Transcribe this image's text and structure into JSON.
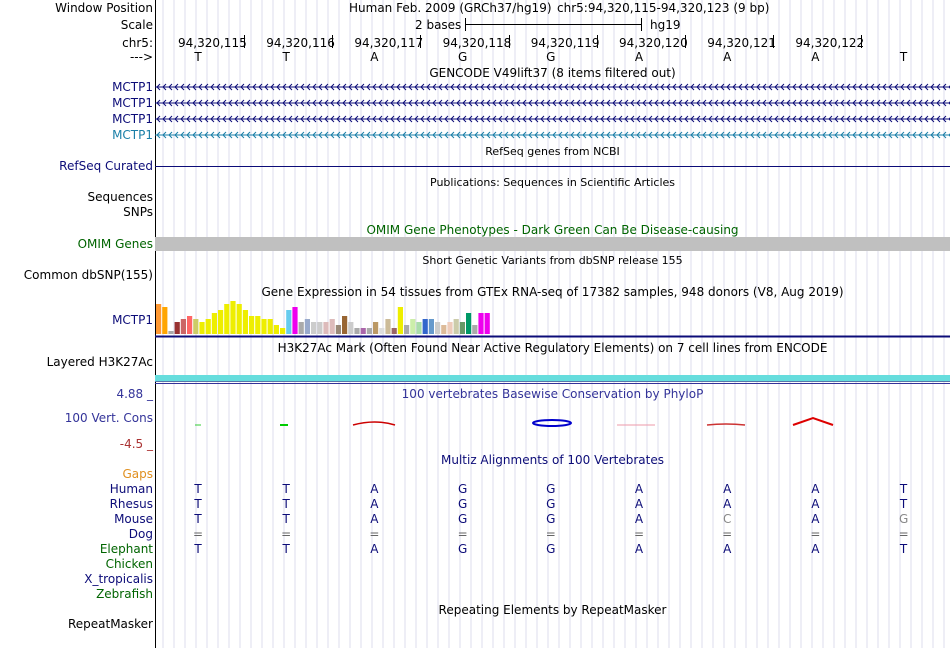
{
  "header": {
    "window_position_label": "Window Position",
    "scale_label": "Scale",
    "chrom_label": "chr5:",
    "arrow_label": "--->",
    "assembly": "Human Feb. 2009 (GRCh37/hg19)",
    "position": "chr5:94,320,115-94,320,123 (9 bp)",
    "scale_text": "2 bases",
    "db": "hg19",
    "coords": [
      "94,320,115",
      "94,320,116",
      "94,320,117",
      "94,320,118",
      "94,320,119",
      "94,320,120",
      "94,320,121",
      "94,320,122"
    ],
    "bases": [
      "T",
      "T",
      "A",
      "G",
      "G",
      "A",
      "A",
      "A",
      "T"
    ]
  },
  "gencode": {
    "title": "GENCODE V49lift37 (8 items filtered out)",
    "genes": [
      "MCTP1",
      "MCTP1",
      "MCTP1",
      "MCTP1"
    ],
    "colors": [
      "#0c0c78",
      "#0c0c78",
      "#0c0c78",
      "#1a7fa8"
    ]
  },
  "refseq": {
    "title": "RefSeq genes from NCBI",
    "label": "RefSeq Curated"
  },
  "publications": {
    "title": "Publications: Sequences in Scientific Articles",
    "label1": "Sequences",
    "label2": "SNPs"
  },
  "omim": {
    "title": "OMIM Gene Phenotypes - Dark Green Can Be Disease-causing",
    "label": "OMIM Genes",
    "color": "#c0c0c0"
  },
  "dbsnp": {
    "title": "Short Genetic Variants from dbSNP release 155",
    "label": "Common dbSNP(155)"
  },
  "gtex": {
    "title": "Gene Expression in 54 tissues from GTEx RNA-seq of 17382 samples, 948 donors (V8, Aug 2019)",
    "label": "MCTP1",
    "values": [
      10,
      9,
      1,
      4,
      5,
      6,
      5,
      4,
      5,
      7,
      8,
      10,
      11,
      10,
      8,
      6,
      6,
      5,
      5,
      3,
      2,
      8,
      9,
      4,
      5,
      4,
      4,
      4,
      5,
      3,
      6,
      4,
      2,
      2,
      2,
      4,
      2,
      5,
      2,
      9,
      3,
      5,
      4,
      5,
      5,
      4,
      3,
      4,
      5,
      4,
      7,
      3,
      7,
      7
    ],
    "colors": [
      "#ff9933",
      "#ffa500",
      "#aaaaaa",
      "#993333",
      "#cc6666",
      "#ff6666",
      "#cccc66",
      "#eeee00",
      "#eeee00",
      "#eeee00",
      "#eeee00",
      "#eeee00",
      "#eeee00",
      "#eeee00",
      "#eeee00",
      "#eeee00",
      "#eeee00",
      "#eeee00",
      "#eeee00",
      "#eeee00",
      "#eeee00",
      "#66ccee",
      "#ee00ee",
      "#aaaaaa",
      "#99aacc",
      "#cccccc",
      "#cccccc",
      "#ddbbbb",
      "#ddbbbb",
      "#998877",
      "#996633",
      "#cccccc",
      "#aaaaaa",
      "#aa66aa",
      "#aaaaaa",
      "#bb9966",
      "#dddddd",
      "#ccbb99",
      "#996666",
      "#eeee00",
      "#aaaaaa",
      "#cceeaa",
      "#aaddaa",
      "#3366cc",
      "#6699cc",
      "#cccccc",
      "#ddbb99",
      "#eeccbb",
      "#ccccaa",
      "#669966",
      "#009966",
      "#aaaaaa",
      "#ee00ee",
      "#ee00ee"
    ]
  },
  "h3k27ac": {
    "title": "H3K27Ac Mark (Often Found Near Active Regulatory Elements) on 7 cell lines from ENCODE",
    "label": "Layered H3K27Ac"
  },
  "phylop": {
    "title": "100 vertebrates Basewise Conservation by PhyloP",
    "label": "100 Vert. Cons",
    "max_label": "4.88 _",
    "min_label": "-4.5 _"
  },
  "multiz": {
    "title": "Multiz Alignments of 100 Vertebrates",
    "gaps_label": "Gaps",
    "species": [
      {
        "name": "Human",
        "color": "#0c0c78",
        "bases": [
          "T",
          "T",
          "A",
          "G",
          "G",
          "A",
          "A",
          "A",
          "T"
        ]
      },
      {
        "name": "Rhesus",
        "color": "#0c0c78",
        "bases": [
          "T",
          "T",
          "A",
          "G",
          "G",
          "A",
          "A",
          "A",
          "T"
        ]
      },
      {
        "name": "Mouse",
        "color": "#0c0c78",
        "bases": [
          "T",
          "T",
          "A",
          "G",
          "G",
          "A",
          "C",
          "A",
          "G"
        ]
      },
      {
        "name": "Dog",
        "color": "#0c0c78",
        "bases": [
          "=",
          "=",
          "=",
          "=",
          "=",
          "=",
          "=",
          "=",
          "="
        ]
      },
      {
        "name": "Elephant",
        "color": "#006400",
        "bases": [
          "T",
          "T",
          "A",
          "G",
          "G",
          "A",
          "A",
          "A",
          "T"
        ]
      },
      {
        "name": "Chicken",
        "color": "#006400",
        "bases": [
          "",
          "",
          "",
          "",
          "",
          "",
          "",
          "",
          ""
        ]
      },
      {
        "name": "X_tropicalis",
        "color": "#0c0c78",
        "bases": [
          "",
          "",
          "",
          "",
          "",
          "",
          "",
          "",
          ""
        ]
      },
      {
        "name": "Zebrafish",
        "color": "#006400",
        "bases": [
          "",
          "",
          "",
          "",
          "",
          "",
          "",
          "",
          ""
        ]
      }
    ]
  },
  "repeatmasker": {
    "title": "Repeating Elements by RepeatMasker",
    "label": "RepeatMasker"
  }
}
